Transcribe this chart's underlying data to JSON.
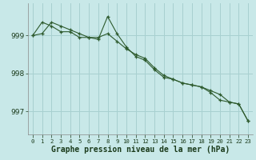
{
  "title": "Graphe pression niveau de la mer (hPa)",
  "background_color": "#c8e8e8",
  "grid_color": "#a8d0d0",
  "line_color": "#2d5a2d",
  "line1": [
    999.0,
    999.05,
    999.35,
    999.25,
    999.15,
    999.05,
    998.95,
    998.95,
    999.05,
    998.85,
    998.65,
    998.5,
    998.4,
    998.15,
    997.95,
    997.85,
    997.75,
    997.7,
    997.65,
    997.5,
    997.3,
    997.25,
    997.2,
    996.75
  ],
  "line2": [
    999.0,
    999.35,
    999.25,
    999.1,
    999.1,
    998.95,
    998.95,
    998.9,
    999.5,
    999.05,
    998.7,
    998.45,
    998.35,
    998.1,
    997.9,
    997.85,
    997.75,
    997.7,
    997.65,
    997.55,
    997.45,
    997.25,
    997.2,
    996.75
  ],
  "hours": [
    0,
    1,
    2,
    3,
    4,
    5,
    6,
    7,
    8,
    9,
    10,
    11,
    12,
    13,
    14,
    15,
    16,
    17,
    18,
    19,
    20,
    21,
    22,
    23
  ],
  "yticks": [
    997,
    998,
    999
  ],
  "ylim": [
    996.4,
    999.85
  ],
  "xlim": [
    -0.5,
    23.5
  ],
  "ylabel_fontsize": 6.5,
  "xlabel_fontsize": 7.0,
  "xtick_fontsize": 5.2
}
